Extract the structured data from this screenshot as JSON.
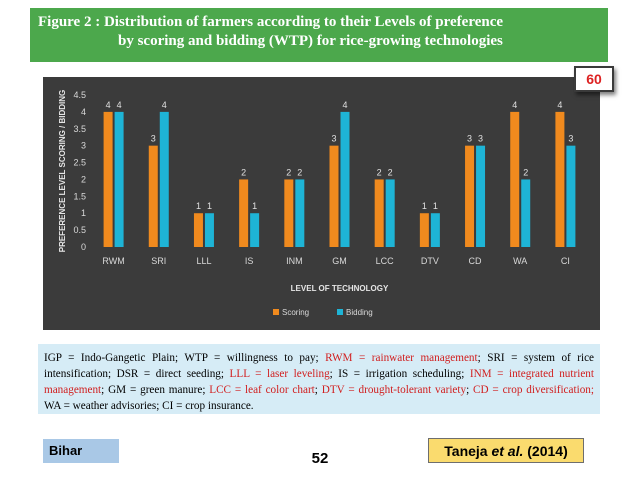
{
  "slide": {
    "title_line1": "Figure 2 : Distribution of  farmers  according to their Levels of preference",
    "title_line2": "by scoring and bidding (WTP) for rice-growing   technologies",
    "badge": "60",
    "page_number": "52",
    "region": "Bihar",
    "reference_author": "Taneja ",
    "reference_etal": "et al.",
    "reference_year": " (2014)"
  },
  "note": {
    "segments": [
      {
        "text": "IGP = Indo-Gangetic Plain; WTP = willingness to pay; ",
        "red": false
      },
      {
        "text": "RWM = rainwater management",
        "red": true
      },
      {
        "text": "; SRI = system of rice intensification; DSR = direct seeding; ",
        "red": false
      },
      {
        "text": "LLL = laser leveling",
        "red": true
      },
      {
        "text": "; IS = irrigation scheduling; ",
        "red": false
      },
      {
        "text": "INM = integrated nutrient management",
        "red": true
      },
      {
        "text": "; GM = green manure; ",
        "red": false
      },
      {
        "text": "LCC = leaf color chart",
        "red": true
      },
      {
        "text": "; ",
        "red": false
      },
      {
        "text": "DTV = drought-tolerant variety",
        "red": true
      },
      {
        "text": "; ",
        "red": false
      },
      {
        "text": "CD = crop diversification;",
        "red": true
      },
      {
        "text": " WA = weather advisories; CI = crop insurance.",
        "red": false
      }
    ]
  },
  "chart_data": {
    "type": "bar",
    "categories": [
      "RWM",
      "SRI",
      "LLL",
      "IS",
      "INM",
      "GM",
      "LCC",
      "DTV",
      "CD",
      "WA",
      "CI"
    ],
    "series": [
      {
        "name": "Scoring",
        "values": [
          4,
          3,
          1,
          2,
          2,
          3,
          2,
          1,
          3,
          4,
          4
        ],
        "color": "#f08a1e"
      },
      {
        "name": "Bidding",
        "values": [
          4,
          4,
          1,
          1,
          2,
          4,
          2,
          1,
          3,
          2,
          3
        ],
        "color": "#1eb4d6"
      }
    ],
    "title": "",
    "xlabel": "LEVEL OF TECHNOLOGY",
    "ylabel": "PREFERENCE LEVEL SCORING / BIDDING",
    "ylim": [
      0,
      4.5
    ],
    "yticks": [
      "0",
      "0.5",
      "1",
      "1.5",
      "2",
      "2.5",
      "3",
      "3.5",
      "4",
      "4.5"
    ],
    "grid": false,
    "legend": "bottom",
    "data_labels": true
  }
}
